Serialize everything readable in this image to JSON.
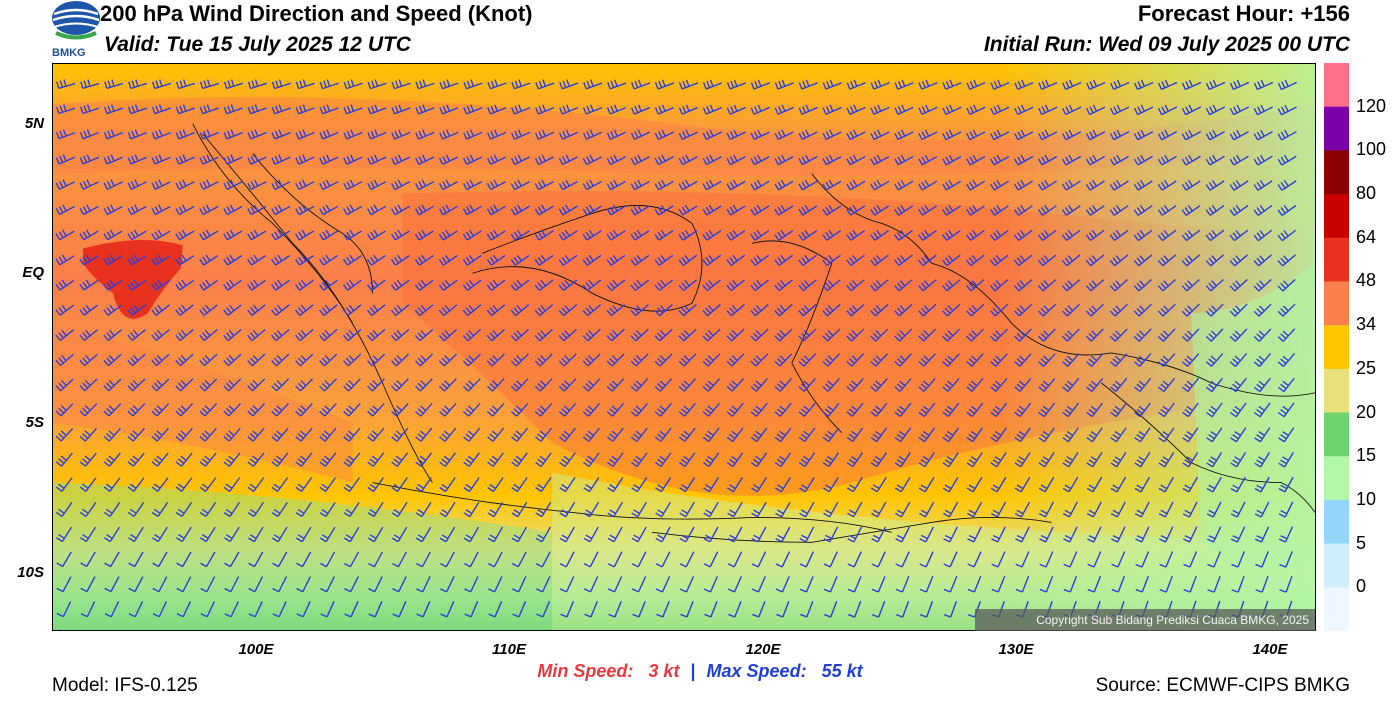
{
  "header": {
    "title": "200 hPa Wind Direction and Speed (Knot)",
    "valid": "Valid: Tue 15 July 2025 12 UTC",
    "forecast_hour": "Forecast Hour: +156",
    "initial_run": "Initial Run: Wed 09 July 2025 00 UTC",
    "logo_text": "BMKG"
  },
  "map": {
    "lat_labels": [
      "5N",
      "EQ",
      "5S",
      "10S"
    ],
    "lon_labels": [
      "100E",
      "110E",
      "120E",
      "130E",
      "140E"
    ],
    "copyright": "Copyright Sub Bidang Prediksi Cuaca BMKG, 2025"
  },
  "colorbar": {
    "labels": [
      "120",
      "100",
      "80",
      "64",
      "48",
      "34",
      "25",
      "20",
      "15",
      "10",
      "5",
      "0"
    ],
    "colors": [
      "#ff6f8a",
      "#7a00a8",
      "#8b0000",
      "#c80000",
      "#e8321e",
      "#fb7f4a",
      "#ffc400",
      "#e8e07a",
      "#6fd36f",
      "#b2f7a8",
      "#92d6fb",
      "#cfeefc",
      "#eef7ff"
    ]
  },
  "footer": {
    "min_speed_label": "Min Speed:",
    "min_speed_value": "3 kt",
    "separator": "|",
    "max_speed_label": "Max Speed:",
    "max_speed_value": "55 kt",
    "model": "Model: IFS-0.125",
    "source": "Source: ECMWF-CIPS BMKG"
  },
  "colors": {
    "barb": "#2e3fd8",
    "min_speed": "#e8383b",
    "max_speed": "#1f3fd6"
  }
}
